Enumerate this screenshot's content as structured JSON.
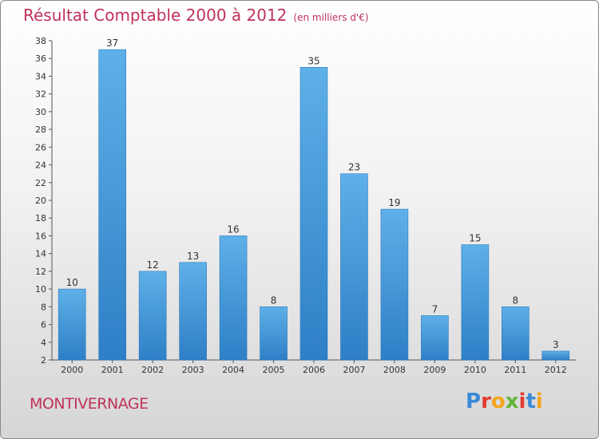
{
  "title": "Résultat Comptable 2000 à 2012",
  "subtitle": "(en milliers d'€)",
  "commune": "MONTIVERNAGE",
  "logo": {
    "letters": [
      "P",
      "r",
      "o",
      "x",
      "i",
      "t",
      "i"
    ],
    "colors": [
      "#3a8ad6",
      "#e23b2e",
      "#f4a51c",
      "#63b535",
      "#e23b2e",
      "#3a8ad6",
      "#f4a51c"
    ]
  },
  "colors": {
    "title": "#c0325a",
    "bar": "#3d8fd3",
    "bar_light": "#5eb0e8"
  },
  "chart_data": {
    "type": "bar",
    "categories": [
      "2000",
      "2001",
      "2002",
      "2003",
      "2004",
      "2005",
      "2006",
      "2007",
      "2008",
      "2009",
      "2010",
      "2011",
      "2012"
    ],
    "values": [
      10,
      37,
      12,
      13,
      16,
      8,
      35,
      23,
      19,
      7,
      15,
      8,
      3
    ],
    "ylim": [
      2,
      38
    ],
    "yticks": [
      2,
      4,
      6,
      8,
      10,
      12,
      14,
      16,
      18,
      20,
      22,
      24,
      26,
      28,
      30,
      32,
      34,
      36,
      38
    ],
    "grid": false,
    "data_labels": true
  }
}
